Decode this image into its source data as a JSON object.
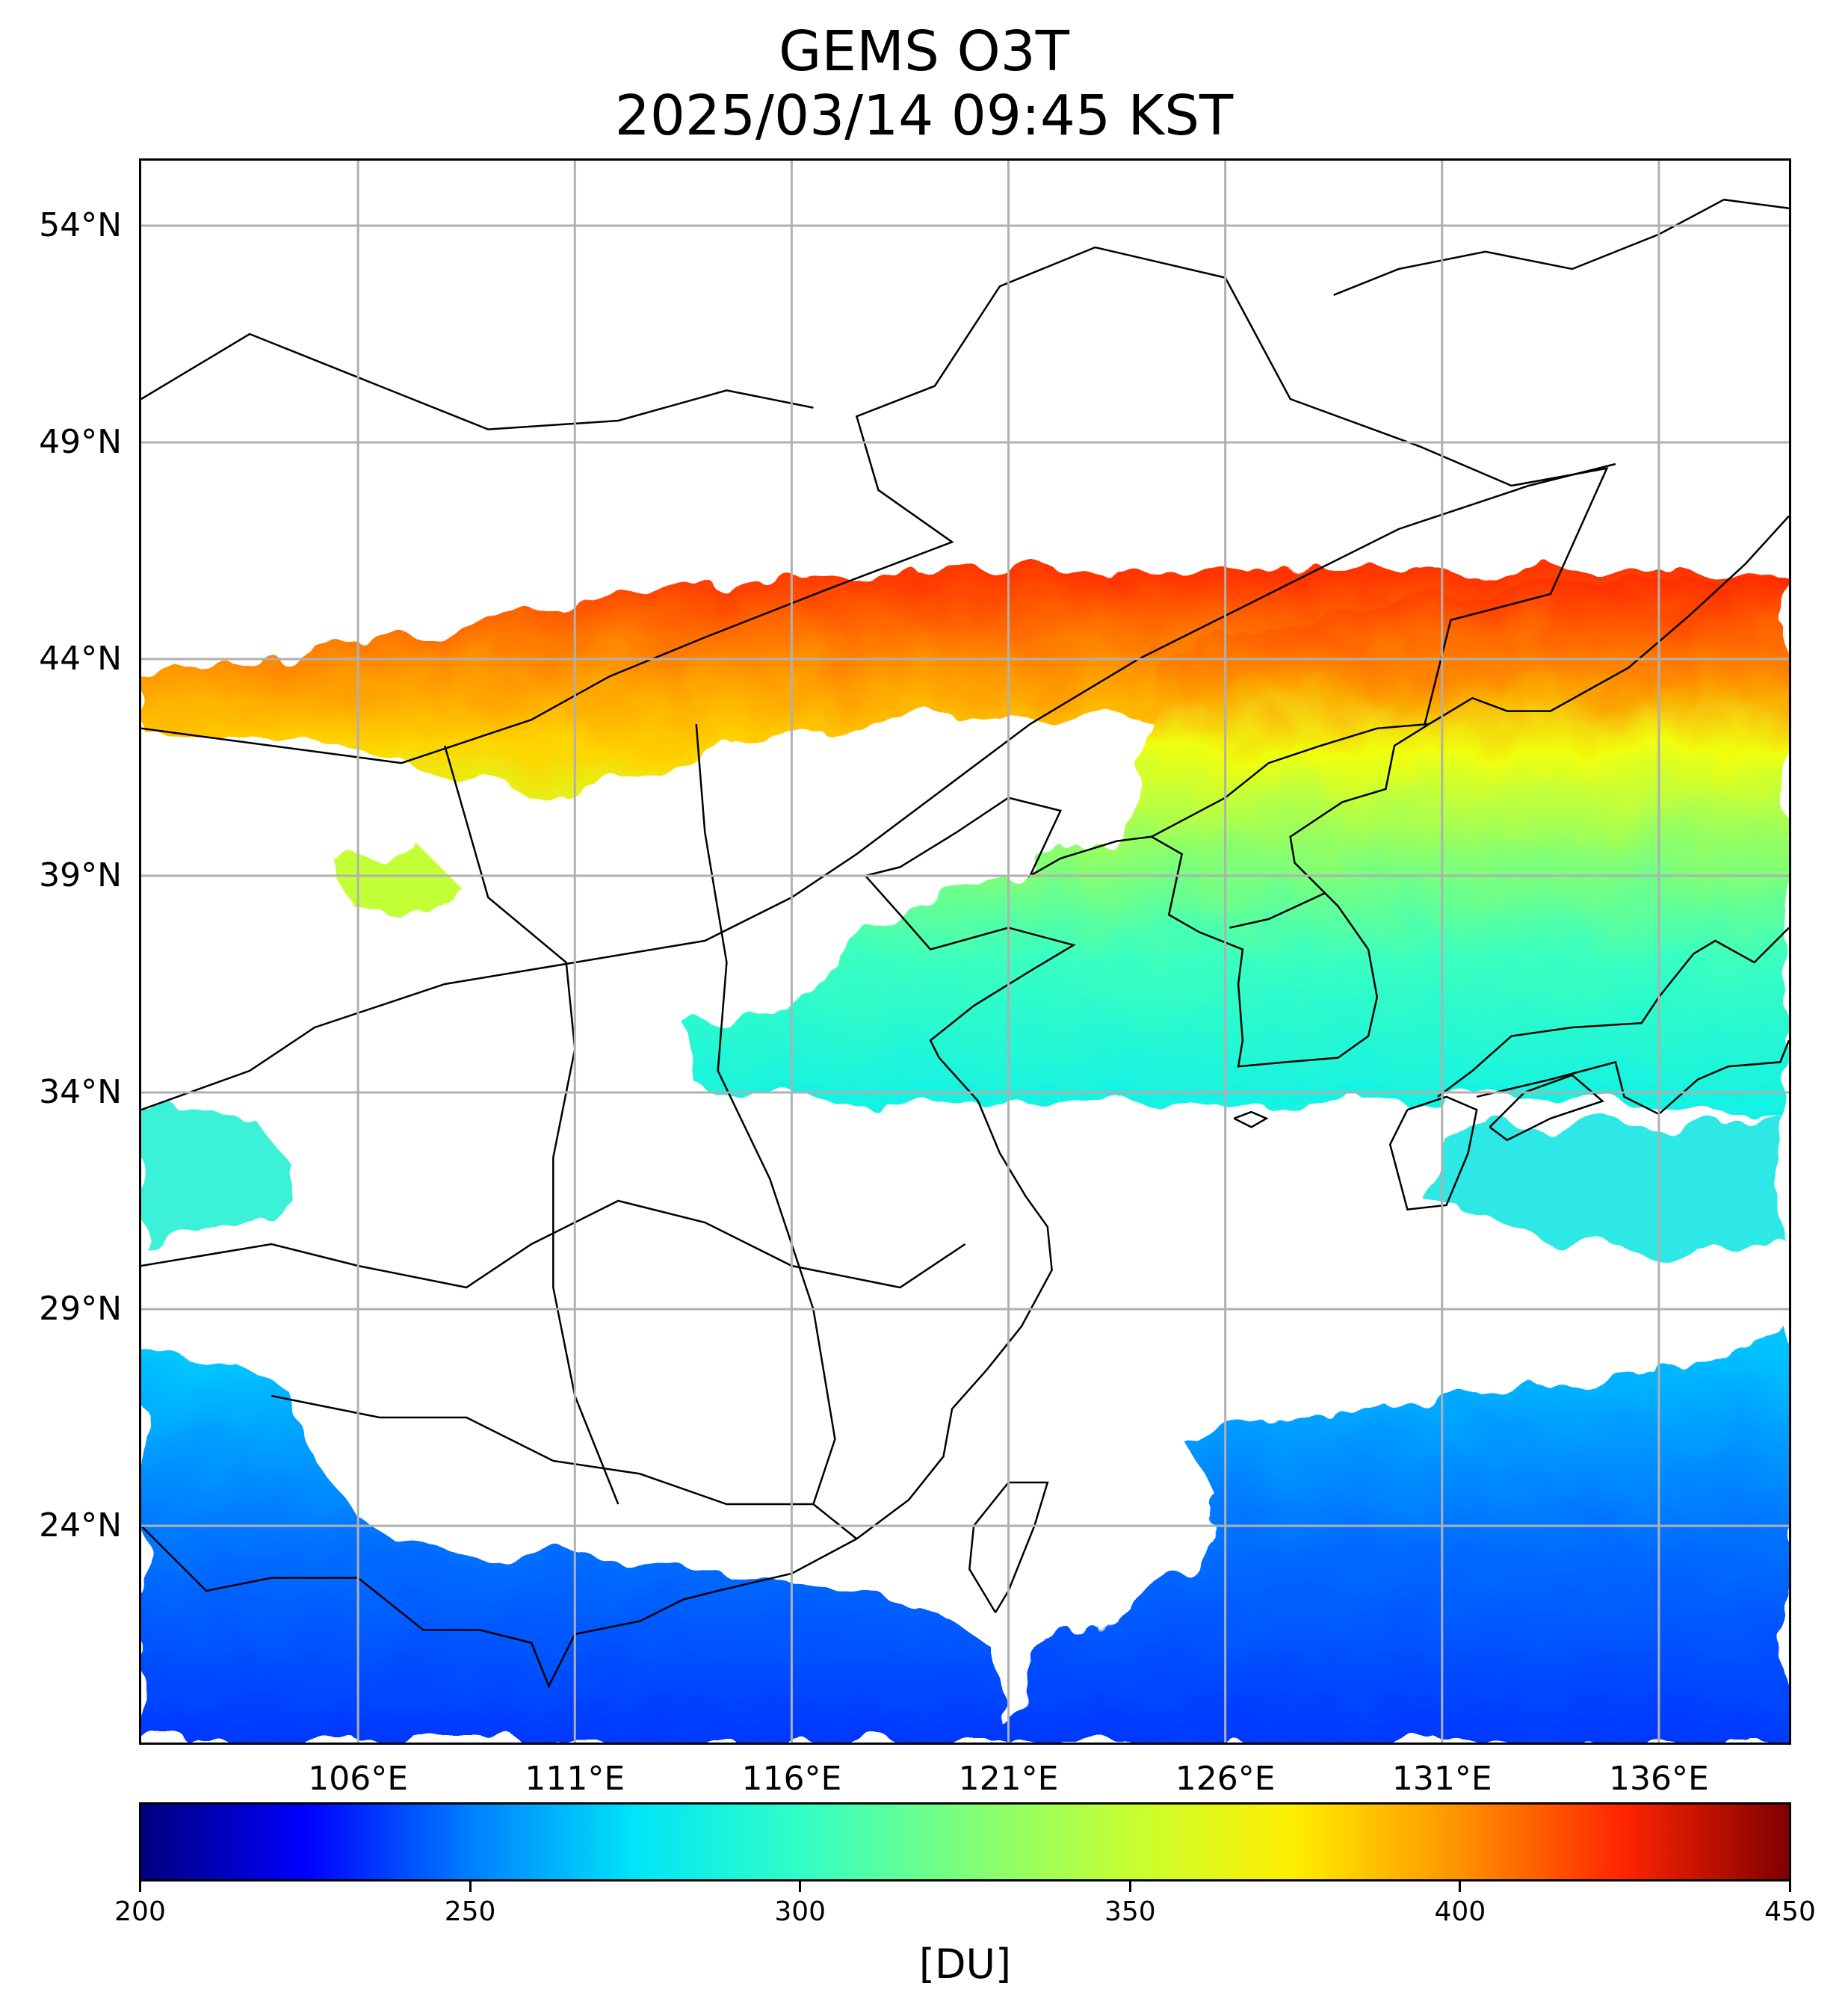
{
  "map": {
    "title_line1": "GEMS O3T",
    "title_line2": "2025/03/14 09:45 KST",
    "lat_labels": [
      "54°N",
      "49°N",
      "44°N",
      "39°N",
      "34°N",
      "29°N",
      "24°N"
    ],
    "lon_labels": [
      "106°E",
      "111°E",
      "116°E",
      "121°E",
      "126°E",
      "131°E",
      "136°E"
    ],
    "lat_values": [
      54,
      49,
      44,
      39,
      34,
      29,
      24
    ],
    "lon_values": [
      106,
      111,
      116,
      121,
      126,
      131,
      136
    ],
    "lon_range": [
      101,
      139
    ],
    "lat_range": [
      19,
      55.5
    ],
    "gridlines": true,
    "colorbar": {
      "min": 200,
      "max": 450,
      "tick_labels": [
        "200",
        "250",
        "300",
        "350",
        "400",
        "450"
      ],
      "units": "[DU]",
      "colormap": "jet",
      "colors": [
        "#00007f",
        "#0000ff",
        "#007fff",
        "#00e5f8",
        "#31ffc6",
        "#7dff7a",
        "#c6ff31",
        "#ffee00",
        "#ff9200",
        "#ff2400",
        "#7f0000"
      ]
    }
  }
}
